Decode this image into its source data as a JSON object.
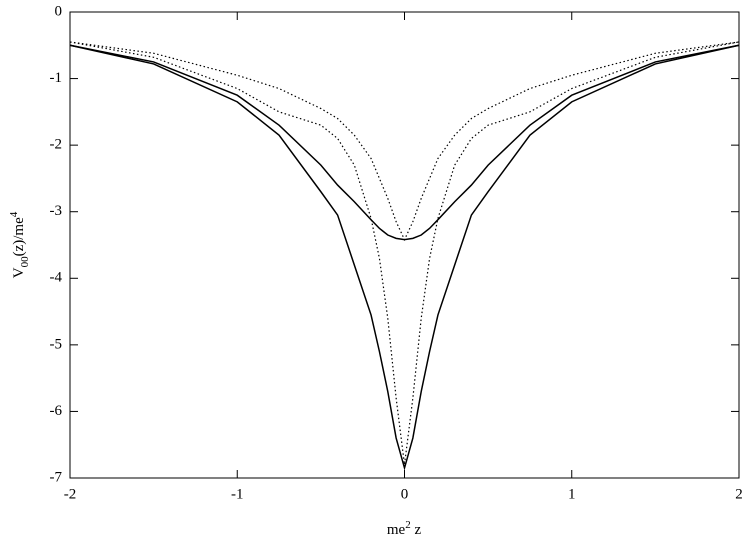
{
  "chart_data": {
    "type": "line",
    "xlabel": [
      "me",
      "2",
      " z"
    ],
    "ylabel": [
      "V",
      "00",
      "(z)/me",
      "4"
    ],
    "x": [
      -2,
      -1.5,
      -1,
      -0.75,
      -0.5,
      -0.4,
      -0.3,
      -0.2,
      -0.15,
      -0.1,
      -0.05,
      0,
      0.05,
      0.1,
      0.15,
      0.2,
      0.3,
      0.4,
      0.5,
      0.75,
      1,
      1.5,
      2
    ],
    "series": [
      {
        "color": "#000000",
        "dash": "solid",
        "values": [
          -0.5,
          -0.75,
          -1.25,
          -1.7,
          -2.3,
          -2.6,
          -2.85,
          -3.12,
          -3.25,
          -3.35,
          -3.4,
          -3.42,
          -3.4,
          -3.35,
          -3.25,
          -3.12,
          -2.85,
          -2.6,
          -2.3,
          -1.7,
          -1.25,
          -0.75,
          -0.5
        ]
      },
      {
        "color": "#000000",
        "dash": "solid",
        "values": [
          -0.5,
          -0.78,
          -1.35,
          -1.85,
          -2.7,
          -3.05,
          -3.8,
          -4.55,
          -5.1,
          -5.7,
          -6.4,
          -6.85,
          -6.4,
          -5.7,
          -5.1,
          -4.55,
          -3.8,
          -3.05,
          -2.7,
          -1.85,
          -1.35,
          -0.78,
          -0.5
        ]
      },
      {
        "color": "#000000",
        "dash": "dotted",
        "values": [
          -0.45,
          -0.62,
          -0.95,
          -1.15,
          -1.45,
          -1.6,
          -1.85,
          -2.2,
          -2.5,
          -2.8,
          -3.15,
          -3.42,
          -3.15,
          -2.8,
          -2.5,
          -2.2,
          -1.85,
          -1.6,
          -1.45,
          -1.15,
          -0.95,
          -0.62,
          -0.45
        ]
      },
      {
        "color": "#000000",
        "dash": "dotted",
        "values": [
          -0.45,
          -0.68,
          -1.15,
          -1.5,
          -1.7,
          -1.9,
          -2.3,
          -3.1,
          -3.7,
          -4.6,
          -5.8,
          -6.8,
          -5.8,
          -4.6,
          -3.7,
          -3.1,
          -2.3,
          -1.9,
          -1.7,
          -1.5,
          -1.15,
          -0.68,
          -0.45
        ]
      }
    ],
    "xlim": [
      -2,
      2
    ],
    "xticks": [
      -2,
      -1,
      0,
      1,
      2
    ],
    "ylim": [
      -7,
      0
    ],
    "yticks": [
      0,
      -1,
      -2,
      -3,
      -4,
      -5,
      -6,
      -7
    ],
    "grid": false
  }
}
